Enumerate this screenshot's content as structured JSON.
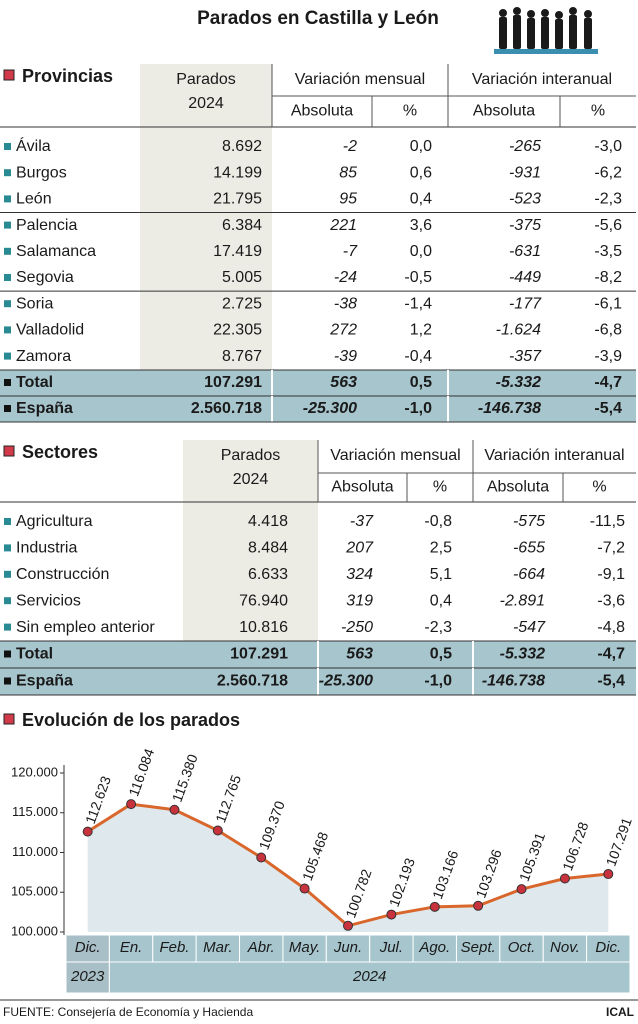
{
  "header": {
    "title": "Parados en Castilla y León"
  },
  "provincias": {
    "title": "Provincias",
    "header": {
      "parados": "Parados",
      "year": "2024",
      "mensual": "Variación mensual",
      "interanual": "Variación interanual",
      "subheaders": [
        "Absoluta",
        "%",
        "Absoluta",
        "%"
      ]
    },
    "rows": [
      [
        "Ávila",
        "8.692",
        "-2",
        "0,0",
        "-265",
        "-3,0"
      ],
      [
        "Burgos",
        "14.199",
        "85",
        "0,6",
        "-931",
        "-6,2"
      ],
      [
        "León",
        "21.795",
        "95",
        "0,4",
        "-523",
        "-2,3"
      ],
      [
        "Palencia",
        "6.384",
        "221",
        "3,6",
        "-375",
        "-5,6"
      ],
      [
        "Salamanca",
        "17.419",
        "-7",
        "0,0",
        "-631",
        "-3,5"
      ],
      [
        "Segovia",
        "5.005",
        "-24",
        "-0,5",
        "-449",
        "-8,2"
      ],
      [
        "Soria",
        "2.725",
        "-38",
        "-1,4",
        "-177",
        "-6,1"
      ],
      [
        "Valladolid",
        "22.305",
        "272",
        "1,2",
        "-1.624",
        "-6,8"
      ],
      [
        "Zamora",
        "8.767",
        "-39",
        "-0,4",
        "-357",
        "-3,9"
      ]
    ],
    "totals": [
      [
        "Total",
        "107.291",
        "563",
        "0,5",
        "-5.332",
        "-4,7"
      ],
      [
        "España",
        "2.560.718",
        "-25.300",
        "-1,0",
        "-146.738",
        "-5,4"
      ]
    ]
  },
  "sectores": {
    "title": "Sectores",
    "header": {
      "parados": "Parados",
      "year": "2024",
      "mensual": "Variación mensual",
      "interanual": "Variación interanual",
      "subheaders": [
        "Absoluta",
        "%",
        "Absoluta",
        "%"
      ]
    },
    "rows": [
      [
        "Agricultura",
        "4.418",
        "-37",
        "-0,8",
        "-575",
        "-11,5"
      ],
      [
        "Industria",
        "8.484",
        "207",
        "2,5",
        "-655",
        "-7,2"
      ],
      [
        "Construcción",
        "6.633",
        "324",
        "5,1",
        "-664",
        "-9,1"
      ],
      [
        "Servicios",
        "76.940",
        "319",
        "0,4",
        "-2.891",
        "-3,6"
      ],
      [
        "Sin empleo anterior",
        "10.816",
        "-250",
        "-2,3",
        "-547",
        "-4,8"
      ]
    ],
    "totals": [
      [
        "Total",
        "107.291",
        "563",
        "0,5",
        "-5.332",
        "-4,7"
      ],
      [
        "España",
        "2.560.718",
        "-25.300",
        "-1,0",
        "-146.738",
        "-5,4"
      ]
    ]
  },
  "chart_data": {
    "type": "line",
    "title": "Evolución de los parados",
    "categories": [
      "Dic.",
      "En.",
      "Feb.",
      "Mar.",
      "Abr.",
      "May.",
      "Jun.",
      "Jul.",
      "Ago.",
      "Sept.",
      "Oct.",
      "Nov.",
      "Dic."
    ],
    "years": [
      "2023",
      "2024"
    ],
    "values": [
      112623,
      116084,
      115380,
      112765,
      109370,
      105468,
      100782,
      102193,
      103166,
      103296,
      105391,
      106728,
      107291
    ],
    "value_labels": [
      "112.623",
      "116.084",
      "115.380",
      "112.765",
      "109.370",
      "105.468",
      "100.782",
      "102.193",
      "103.166",
      "103.296",
      "105.391",
      "106.728",
      "107.291"
    ],
    "color": "#d9662b",
    "marker_color": "#c8323c",
    "area_color": "#dfe9ed",
    "ylim": [
      100000,
      120000
    ],
    "yticks": [
      {
        "value": 100000,
        "label": "100.000"
      },
      {
        "value": 105000,
        "label": "105.000"
      },
      {
        "value": 110000,
        "label": "110.000"
      },
      {
        "value": 115000,
        "label": "115.000"
      },
      {
        "value": 120000,
        "label": "120.000"
      }
    ]
  },
  "footer": {
    "source": "FUENTE: Consejería de Economía y Hacienda",
    "credit": "ICAL"
  }
}
